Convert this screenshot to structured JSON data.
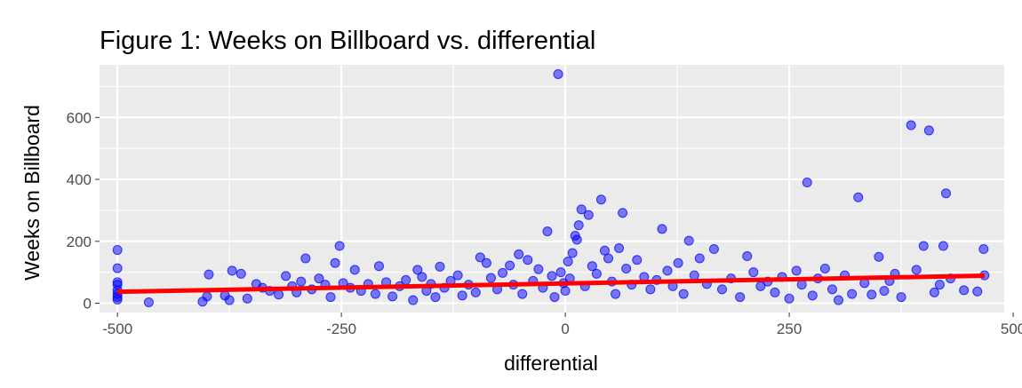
{
  "chart_data": {
    "type": "scatter",
    "title": "Figure 1: Weeks on Billboard vs. differential",
    "xlabel": "differential",
    "ylabel": "Weeks on Billboard",
    "xlim": [
      -520,
      490
    ],
    "ylim": [
      -30,
      770
    ],
    "x_ticks": [
      -500,
      -250,
      0,
      250,
      500
    ],
    "x_tick_labels": [
      "-500",
      "-250",
      "0",
      "250",
      "500"
    ],
    "y_ticks": [
      0,
      200,
      400,
      600
    ],
    "y_tick_labels": [
      "0",
      "200",
      "400",
      "600"
    ],
    "grid": true,
    "background": "#ebebeb",
    "point_color": "#0000ff",
    "line_color": "#ff0000",
    "trend_line": {
      "x": [
        -500,
        468
      ],
      "y": [
        37,
        89
      ]
    },
    "points": [
      {
        "x": -500,
        "y": 172
      },
      {
        "x": -500,
        "y": 113
      },
      {
        "x": -500,
        "y": 68
      },
      {
        "x": -500,
        "y": 60
      },
      {
        "x": -500,
        "y": 42
      },
      {
        "x": -500,
        "y": 30
      },
      {
        "x": -500,
        "y": 20
      },
      {
        "x": -500,
        "y": 12
      },
      {
        "x": -465,
        "y": 3
      },
      {
        "x": -405,
        "y": 5
      },
      {
        "x": -400,
        "y": 22
      },
      {
        "x": -398,
        "y": 93
      },
      {
        "x": -380,
        "y": 25
      },
      {
        "x": -375,
        "y": 10
      },
      {
        "x": -372,
        "y": 105
      },
      {
        "x": -362,
        "y": 95
      },
      {
        "x": -355,
        "y": 15
      },
      {
        "x": -345,
        "y": 62
      },
      {
        "x": -338,
        "y": 50
      },
      {
        "x": -330,
        "y": 40
      },
      {
        "x": -320,
        "y": 28
      },
      {
        "x": -312,
        "y": 88
      },
      {
        "x": -305,
        "y": 55
      },
      {
        "x": -300,
        "y": 35
      },
      {
        "x": -295,
        "y": 70
      },
      {
        "x": -290,
        "y": 145
      },
      {
        "x": -283,
        "y": 45
      },
      {
        "x": -275,
        "y": 80
      },
      {
        "x": -268,
        "y": 60
      },
      {
        "x": -262,
        "y": 20
      },
      {
        "x": -257,
        "y": 130
      },
      {
        "x": -252,
        "y": 185
      },
      {
        "x": -248,
        "y": 65
      },
      {
        "x": -240,
        "y": 50
      },
      {
        "x": -235,
        "y": 108
      },
      {
        "x": -228,
        "y": 40
      },
      {
        "x": -220,
        "y": 62
      },
      {
        "x": -212,
        "y": 30
      },
      {
        "x": -208,
        "y": 120
      },
      {
        "x": -200,
        "y": 68
      },
      {
        "x": -193,
        "y": 22
      },
      {
        "x": -185,
        "y": 55
      },
      {
        "x": -178,
        "y": 75
      },
      {
        "x": -170,
        "y": 10
      },
      {
        "x": -165,
        "y": 108
      },
      {
        "x": -160,
        "y": 85
      },
      {
        "x": -155,
        "y": 40
      },
      {
        "x": -150,
        "y": 62
      },
      {
        "x": -145,
        "y": 20
      },
      {
        "x": -140,
        "y": 118
      },
      {
        "x": -135,
        "y": 50
      },
      {
        "x": -128,
        "y": 72
      },
      {
        "x": -120,
        "y": 90
      },
      {
        "x": -115,
        "y": 25
      },
      {
        "x": -108,
        "y": 60
      },
      {
        "x": -100,
        "y": 35
      },
      {
        "x": -95,
        "y": 148
      },
      {
        "x": -88,
        "y": 130
      },
      {
        "x": -83,
        "y": 82
      },
      {
        "x": -76,
        "y": 45
      },
      {
        "x": -70,
        "y": 98
      },
      {
        "x": -62,
        "y": 122
      },
      {
        "x": -58,
        "y": 60
      },
      {
        "x": -52,
        "y": 158
      },
      {
        "x": -48,
        "y": 30
      },
      {
        "x": -42,
        "y": 140
      },
      {
        "x": -36,
        "y": 72
      },
      {
        "x": -30,
        "y": 110
      },
      {
        "x": -25,
        "y": 50
      },
      {
        "x": -20,
        "y": 232
      },
      {
        "x": -15,
        "y": 88
      },
      {
        "x": -12,
        "y": 20
      },
      {
        "x": -8,
        "y": 740
      },
      {
        "x": -5,
        "y": 100
      },
      {
        "x": -2,
        "y": 65
      },
      {
        "x": 0,
        "y": 40
      },
      {
        "x": 3,
        "y": 135
      },
      {
        "x": 5,
        "y": 80
      },
      {
        "x": 8,
        "y": 162
      },
      {
        "x": 11,
        "y": 218
      },
      {
        "x": 13,
        "y": 205
      },
      {
        "x": 15,
        "y": 252
      },
      {
        "x": 18,
        "y": 303
      },
      {
        "x": 22,
        "y": 55
      },
      {
        "x": 26,
        "y": 285
      },
      {
        "x": 30,
        "y": 120
      },
      {
        "x": 35,
        "y": 95
      },
      {
        "x": 40,
        "y": 335
      },
      {
        "x": 44,
        "y": 170
      },
      {
        "x": 48,
        "y": 145
      },
      {
        "x": 52,
        "y": 70
      },
      {
        "x": 56,
        "y": 30
      },
      {
        "x": 60,
        "y": 178
      },
      {
        "x": 64,
        "y": 292
      },
      {
        "x": 68,
        "y": 112
      },
      {
        "x": 74,
        "y": 60
      },
      {
        "x": 80,
        "y": 140
      },
      {
        "x": 88,
        "y": 85
      },
      {
        "x": 95,
        "y": 45
      },
      {
        "x": 102,
        "y": 75
      },
      {
        "x": 108,
        "y": 240
      },
      {
        "x": 114,
        "y": 105
      },
      {
        "x": 120,
        "y": 55
      },
      {
        "x": 126,
        "y": 130
      },
      {
        "x": 132,
        "y": 30
      },
      {
        "x": 138,
        "y": 202
      },
      {
        "x": 144,
        "y": 90
      },
      {
        "x": 150,
        "y": 145
      },
      {
        "x": 158,
        "y": 62
      },
      {
        "x": 166,
        "y": 175
      },
      {
        "x": 175,
        "y": 45
      },
      {
        "x": 185,
        "y": 80
      },
      {
        "x": 195,
        "y": 20
      },
      {
        "x": 203,
        "y": 152
      },
      {
        "x": 210,
        "y": 100
      },
      {
        "x": 218,
        "y": 55
      },
      {
        "x": 226,
        "y": 70
      },
      {
        "x": 234,
        "y": 35
      },
      {
        "x": 242,
        "y": 85
      },
      {
        "x": 250,
        "y": 15
      },
      {
        "x": 258,
        "y": 105
      },
      {
        "x": 264,
        "y": 60
      },
      {
        "x": 270,
        "y": 390
      },
      {
        "x": 276,
        "y": 25
      },
      {
        "x": 282,
        "y": 80
      },
      {
        "x": 290,
        "y": 112
      },
      {
        "x": 298,
        "y": 45
      },
      {
        "x": 305,
        "y": 10
      },
      {
        "x": 312,
        "y": 90
      },
      {
        "x": 320,
        "y": 30
      },
      {
        "x": 327,
        "y": 342
      },
      {
        "x": 334,
        "y": 65
      },
      {
        "x": 342,
        "y": 28
      },
      {
        "x": 350,
        "y": 150
      },
      {
        "x": 356,
        "y": 40
      },
      {
        "x": 362,
        "y": 72
      },
      {
        "x": 368,
        "y": 95
      },
      {
        "x": 375,
        "y": 20
      },
      {
        "x": 386,
        "y": 575
      },
      {
        "x": 392,
        "y": 108
      },
      {
        "x": 400,
        "y": 185
      },
      {
        "x": 406,
        "y": 558
      },
      {
        "x": 412,
        "y": 35
      },
      {
        "x": 418,
        "y": 60
      },
      {
        "x": 422,
        "y": 185
      },
      {
        "x": 425,
        "y": 355
      },
      {
        "x": 430,
        "y": 80
      },
      {
        "x": 445,
        "y": 42
      },
      {
        "x": 460,
        "y": 38
      },
      {
        "x": 467,
        "y": 175
      },
      {
        "x": 468,
        "y": 90
      }
    ]
  }
}
